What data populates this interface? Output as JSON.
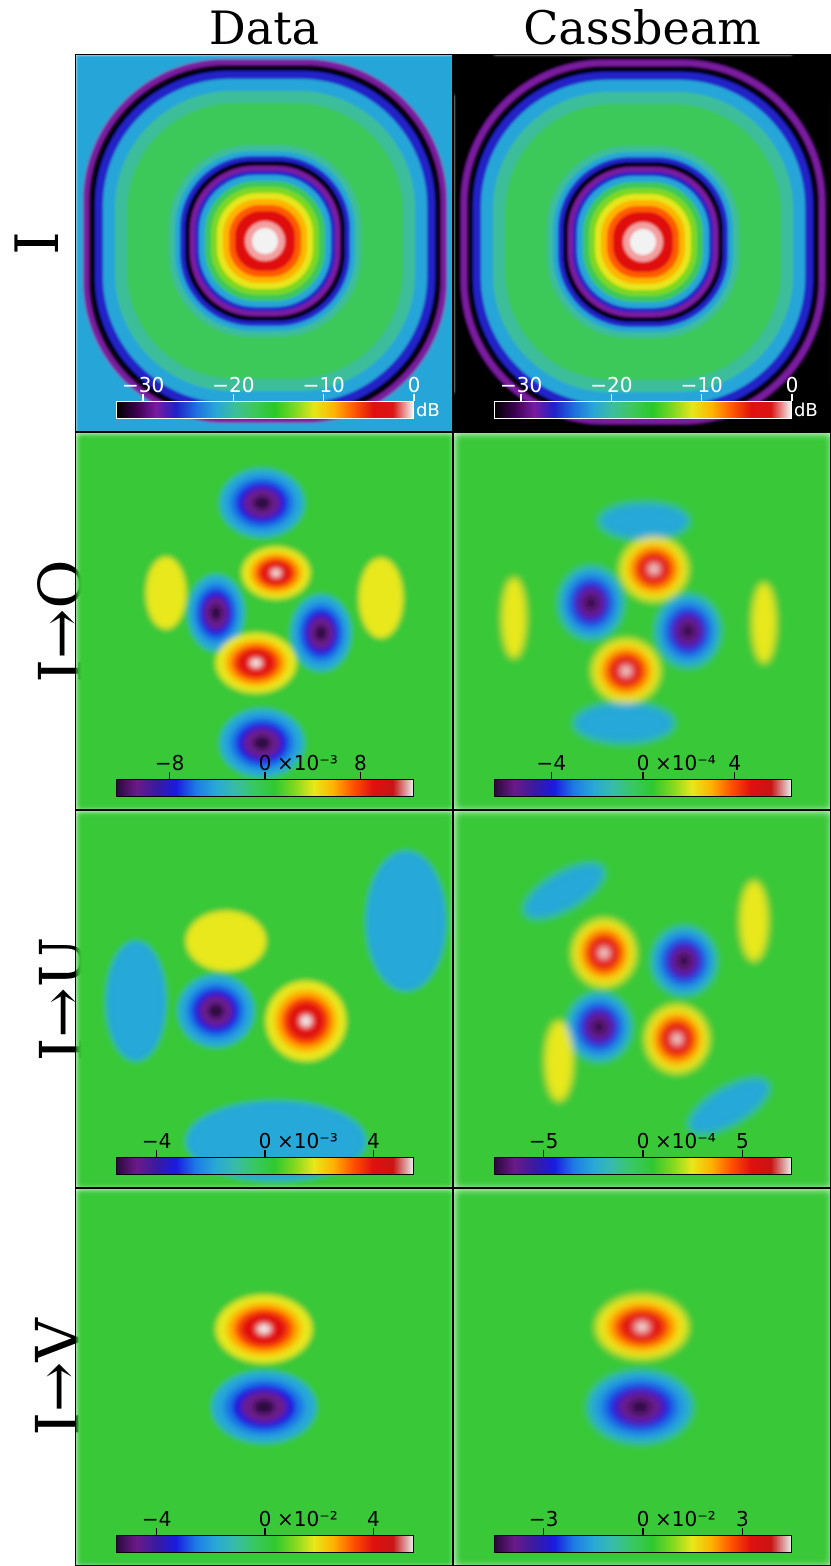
{
  "column_titles": [
    "Data",
    "Cassbeam"
  ],
  "row_labels": [
    "I",
    "I→Q",
    "I→U",
    "I→V"
  ],
  "colormap": {
    "db": [
      "#000000",
      "#3a0050",
      "#7a1aa0",
      "#2020c8",
      "#1e6ee0",
      "#28a6d8",
      "#3cbe9a",
      "#3ec85a",
      "#28c828",
      "#7cd820",
      "#e6e61a",
      "#ffb400",
      "#ff5a00",
      "#e01010",
      "#dc1414",
      "#f2f2f2"
    ],
    "diverging": [
      "#2a0a3c",
      "#6a1a8a",
      "#3a1aa0",
      "#1a1ae0",
      "#1e7ae6",
      "#28a8d8",
      "#38bca8",
      "#38c860",
      "#30c830",
      "#80d820",
      "#e8e81a",
      "#ffb000",
      "#ff5000",
      "#e01010",
      "#c81414",
      "#e8e8e8"
    ]
  },
  "chart_data": [
    {
      "type": "heatmap",
      "column": "Data",
      "row": "I",
      "colorbar": {
        "ticks": [
          "−30",
          "−20",
          "−10",
          "0"
        ],
        "tick_values": [
          -30,
          -20,
          -10,
          0
        ],
        "range": [
          -33,
          0
        ],
        "unit": "dB",
        "exponent": ""
      }
    },
    {
      "type": "heatmap",
      "column": "Cassbeam",
      "row": "I",
      "colorbar": {
        "ticks": [
          "−30",
          "−20",
          "−10",
          "0"
        ],
        "tick_values": [
          -30,
          -20,
          -10,
          0
        ],
        "range": [
          -33,
          0
        ],
        "unit": "dB",
        "exponent": ""
      }
    },
    {
      "type": "heatmap",
      "column": "Data",
      "row": "I→Q",
      "colorbar": {
        "ticks": [
          "−8",
          "0",
          "8"
        ],
        "tick_values": [
          -8,
          0,
          8
        ],
        "range": [
          -12.5,
          12.5
        ],
        "unit": "",
        "exponent": "×10⁻³"
      }
    },
    {
      "type": "heatmap",
      "column": "Cassbeam",
      "row": "I→Q",
      "colorbar": {
        "ticks": [
          "−4",
          "0",
          "4"
        ],
        "tick_values": [
          -4,
          0,
          4
        ],
        "range": [
          -6.5,
          6.5
        ],
        "unit": "",
        "exponent": "×10⁻⁴"
      }
    },
    {
      "type": "heatmap",
      "column": "Data",
      "row": "I→U",
      "colorbar": {
        "ticks": [
          "−4",
          "0",
          "4"
        ],
        "tick_values": [
          -4,
          0,
          4
        ],
        "range": [
          -5.5,
          5.5
        ],
        "unit": "",
        "exponent": "×10⁻³"
      }
    },
    {
      "type": "heatmap",
      "column": "Cassbeam",
      "row": "I→U",
      "colorbar": {
        "ticks": [
          "−5",
          "0",
          "5"
        ],
        "tick_values": [
          -5,
          0,
          5
        ],
        "range": [
          -7.5,
          7.5
        ],
        "unit": "",
        "exponent": "×10⁻⁴"
      }
    },
    {
      "type": "heatmap",
      "column": "Data",
      "row": "I→V",
      "colorbar": {
        "ticks": [
          "−4",
          "0",
          "4"
        ],
        "tick_values": [
          -4,
          0,
          4
        ],
        "range": [
          -5.5,
          5.5
        ],
        "unit": "",
        "exponent": "×10⁻²"
      }
    },
    {
      "type": "heatmap",
      "column": "Cassbeam",
      "row": "I→V",
      "colorbar": {
        "ticks": [
          "−3",
          "0",
          "3"
        ],
        "tick_values": [
          -3,
          0,
          3
        ],
        "range": [
          -4.5,
          4.5
        ],
        "unit": "",
        "exponent": "×10⁻²"
      }
    }
  ]
}
